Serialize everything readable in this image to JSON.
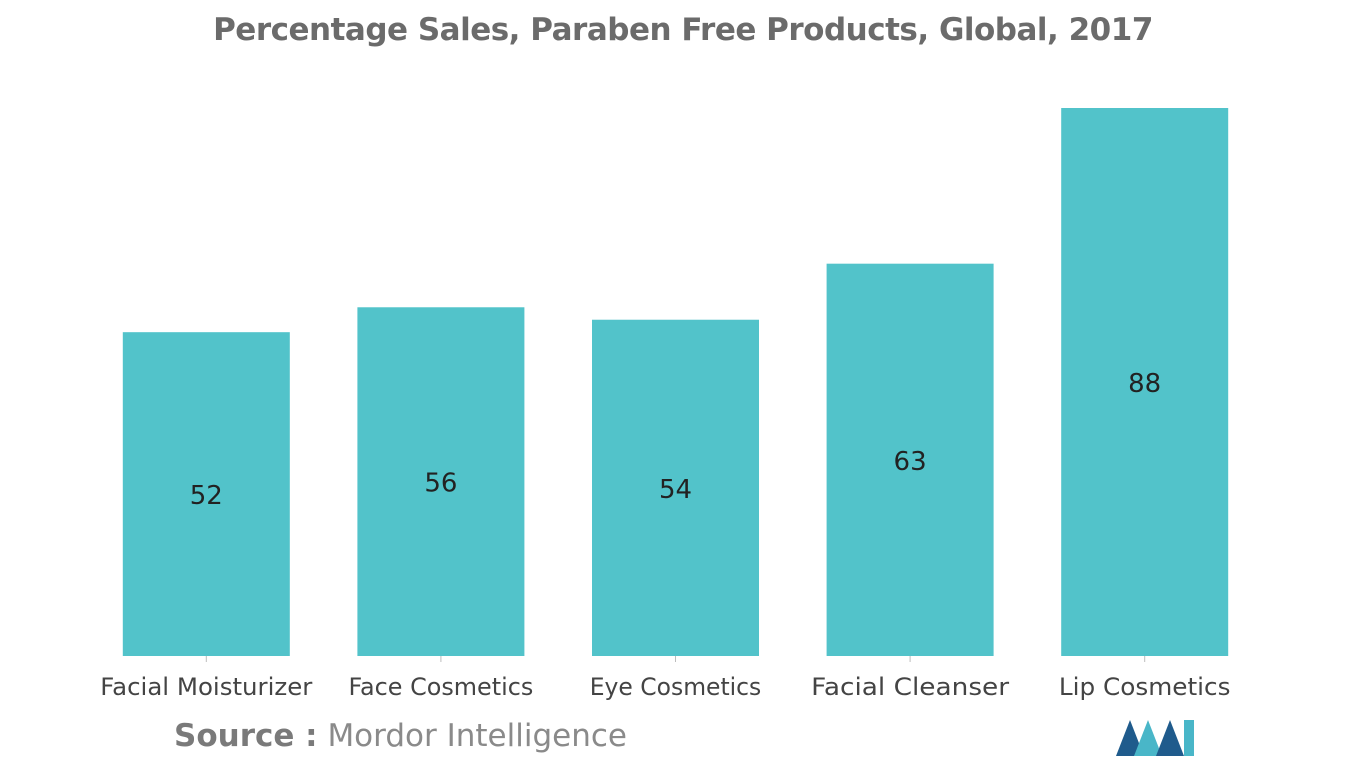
{
  "chart_data": {
    "type": "bar",
    "title": "Percentage Sales, Paraben Free Products, Global, 2017",
    "categories": [
      "Facial Moisturizer",
      "Face Cosmetics",
      "Eye Cosmetics",
      "Facial Cleanser",
      "Lip Cosmetics"
    ],
    "values": [
      52,
      56,
      54,
      63,
      88
    ],
    "xlabel": "",
    "ylabel": "",
    "ylim": [
      0,
      88
    ],
    "grid": false,
    "data_labels": "inside-center",
    "bar_color": "#52c3ca"
  },
  "source": {
    "label": "Source :",
    "text": "Mordor Intelligence"
  },
  "colors": {
    "bar": "#52c3ca",
    "logo_dark": "#1f5b8c",
    "logo_light": "#49b6c8"
  }
}
